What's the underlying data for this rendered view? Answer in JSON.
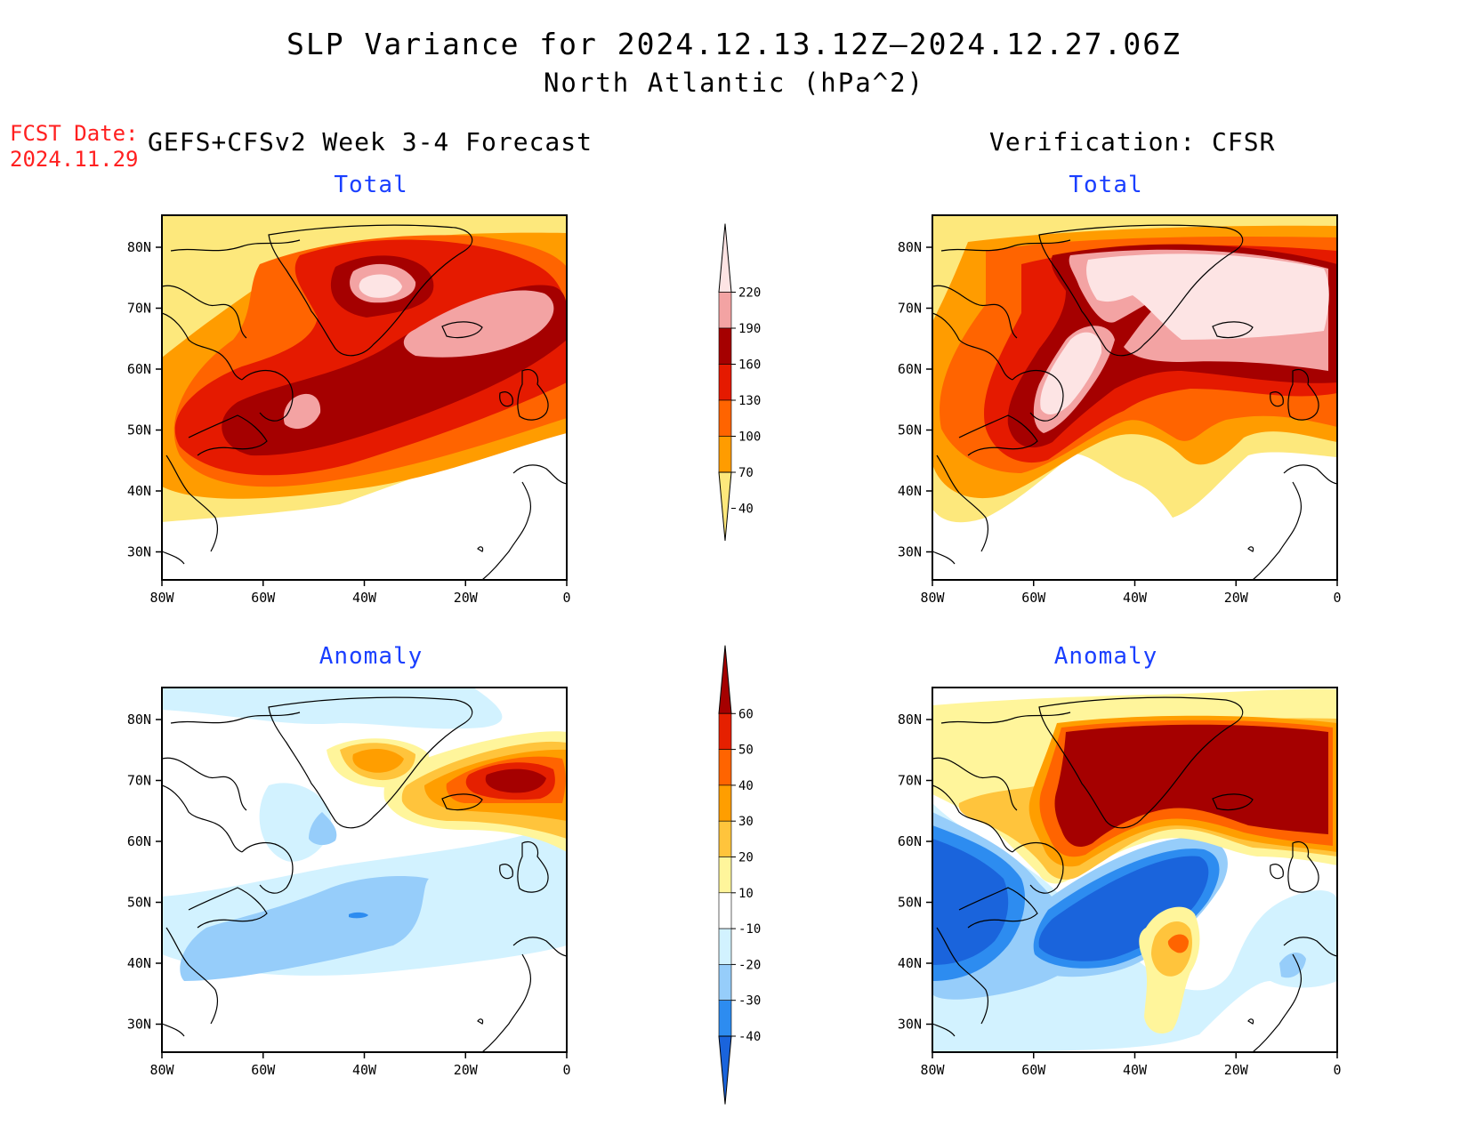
{
  "header": {
    "title_line1": "SLP Variance for 2024.12.13.12Z–2024.12.27.06Z",
    "title_line2": "North Atlantic (hPa^2)",
    "fcst_label": "FCST Date:",
    "fcst_date": "2024.11.29",
    "left_column_title": "GEFS+CFSv2 Week 3-4 Forecast",
    "right_column_title": "Verification: CFSR"
  },
  "panels": [
    {
      "title": "Total",
      "source": "forecast"
    },
    {
      "title": "Total",
      "source": "verification"
    },
    {
      "title": "Anomaly",
      "source": "forecast"
    },
    {
      "title": "Anomaly",
      "source": "verification"
    }
  ],
  "axes": {
    "lon_ticks": [
      "80W",
      "60W",
      "40W",
      "20W",
      "0"
    ],
    "lat_ticks": [
      "80N",
      "70N",
      "60N",
      "50N",
      "40N",
      "30N"
    ]
  },
  "colorbars": {
    "total": {
      "labels": [
        "40",
        "70",
        "100",
        "130",
        "160",
        "190",
        "220"
      ],
      "colors": [
        "#fde87c",
        "#ff9c00",
        "#ff6400",
        "#e51a00",
        "#a50000",
        "#f3a3a3",
        "#fde4e4"
      ]
    },
    "anomaly": {
      "labels": [
        "-40",
        "-30",
        "-20",
        "-10",
        "10",
        "20",
        "30",
        "40",
        "50",
        "60"
      ],
      "colors": [
        "#1a64dc",
        "#2d8cf0",
        "#96cdfa",
        "#d2f2ff",
        "#ffffff",
        "#fff59b",
        "#ffc43c",
        "#ff9e00",
        "#ff6400",
        "#e52000",
        "#a50000"
      ]
    }
  },
  "map_data": {
    "region": "North Atlantic",
    "lon_range": [
      "80W",
      "0"
    ],
    "lat_range": [
      "25N",
      "85N"
    ],
    "features": [
      "Greenland",
      "Iceland",
      "British Isles",
      "Iberia",
      "Labrador",
      "Newfoundland",
      "US East Coast"
    ]
  }
}
